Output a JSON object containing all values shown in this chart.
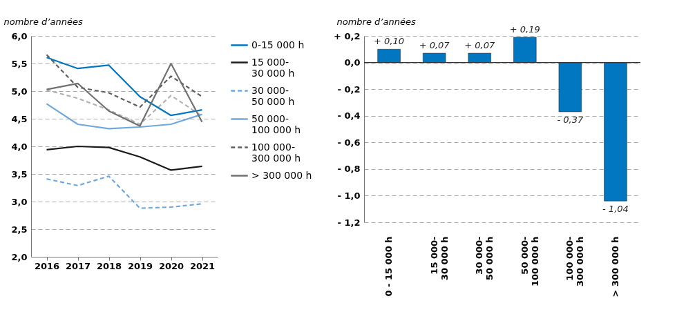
{
  "chart_data": [
    {
      "type": "line",
      "ylabel": "nombre d’années",
      "categories": [
        "2016",
        "2017",
        "2018",
        "2019",
        "2020",
        "2021"
      ],
      "ylim": [
        2,
        6
      ],
      "yticks": [
        {
          "value": 2,
          "label": "2,0"
        },
        {
          "value": 2.5,
          "label": "2,5"
        },
        {
          "value": 3,
          "label": "3,0"
        },
        {
          "value": 3.5,
          "label": "3,5"
        },
        {
          "value": 4,
          "label": "4,0"
        },
        {
          "value": 4.5,
          "label": "4,5"
        },
        {
          "value": 5,
          "label": "5,0"
        },
        {
          "value": 5.5,
          "label": "5,5"
        },
        {
          "value": 6,
          "label": "6,0"
        }
      ],
      "grid": "y",
      "legend": "right",
      "series": [
        {
          "name": null,
          "color": "#b3b3b3",
          "line_style": "dashed",
          "values": [
            5.02,
            4.87,
            4.66,
            4.4,
            4.92,
            4.55
          ]
        },
        {
          "name": "0-15 000 h",
          "color": "#0077c0",
          "line_style": "solid",
          "values": [
            5.61,
            5.41,
            5.47,
            4.9,
            4.56,
            4.66
          ]
        },
        {
          "name": "15 000- 30 000 h",
          "color": "#1a1a1a",
          "line_style": "solid",
          "values": [
            3.94,
            4.0,
            3.98,
            3.81,
            3.57,
            3.64
          ]
        },
        {
          "name": "30 000- 50 000 h",
          "color": "#6fa8dc",
          "line_style": "dashed",
          "values": [
            3.41,
            3.29,
            3.46,
            2.88,
            2.9,
            2.96
          ]
        },
        {
          "name": "50 000- 100 000 h",
          "color": "#6fa8dc",
          "line_style": "solid",
          "values": [
            4.77,
            4.4,
            4.32,
            4.35,
            4.4,
            4.58
          ]
        },
        {
          "name": "100 000- 300 000 h",
          "color": "#5f5f5f",
          "line_style": "dashed",
          "values": [
            5.66,
            5.07,
            4.97,
            4.71,
            5.27,
            4.9
          ]
        },
        {
          "name": "> 300 000 h",
          "color": "#707070",
          "line_style": "solid",
          "values": [
            5.03,
            5.14,
            4.64,
            4.37,
            5.5,
            4.44
          ]
        }
      ]
    },
    {
      "type": "bar",
      "ylabel": "nombre d’années",
      "categories": [
        "0 - 15 000 h",
        "15 000- 30 000 h",
        "30 000- 50 000 h",
        "50 000- 100 000 h",
        "100 000- 300 000 h",
        "> 300 000 h"
      ],
      "values": [
        0.1,
        0.07,
        0.07,
        0.19,
        -0.37,
        -1.04
      ],
      "color": "#0077c0",
      "value_labels": [
        "+ 0,10",
        "+ 0,07",
        "+ 0,07",
        "+ 0,19",
        "- 0,37",
        "- 1,04"
      ],
      "ylim": [
        -1.2,
        0.2
      ],
      "yticks": [
        {
          "value": 0.2,
          "label": "+ 0,2"
        },
        {
          "value": 0,
          "label": "0,0"
        },
        {
          "value": -0.2,
          "label": "- 0,2"
        },
        {
          "value": -0.4,
          "label": "- 0,4"
        },
        {
          "value": -0.6,
          "label": "- 0,6"
        },
        {
          "value": -0.8,
          "label": "- 0,8"
        },
        {
          "value": -1.0,
          "label": "- 1,0"
        },
        {
          "value": -1.2,
          "label": "- 1,2"
        }
      ],
      "grid": "y",
      "ref_lines": [
        {
          "axis": "y",
          "value": 0,
          "color": "#333333"
        }
      ]
    }
  ]
}
